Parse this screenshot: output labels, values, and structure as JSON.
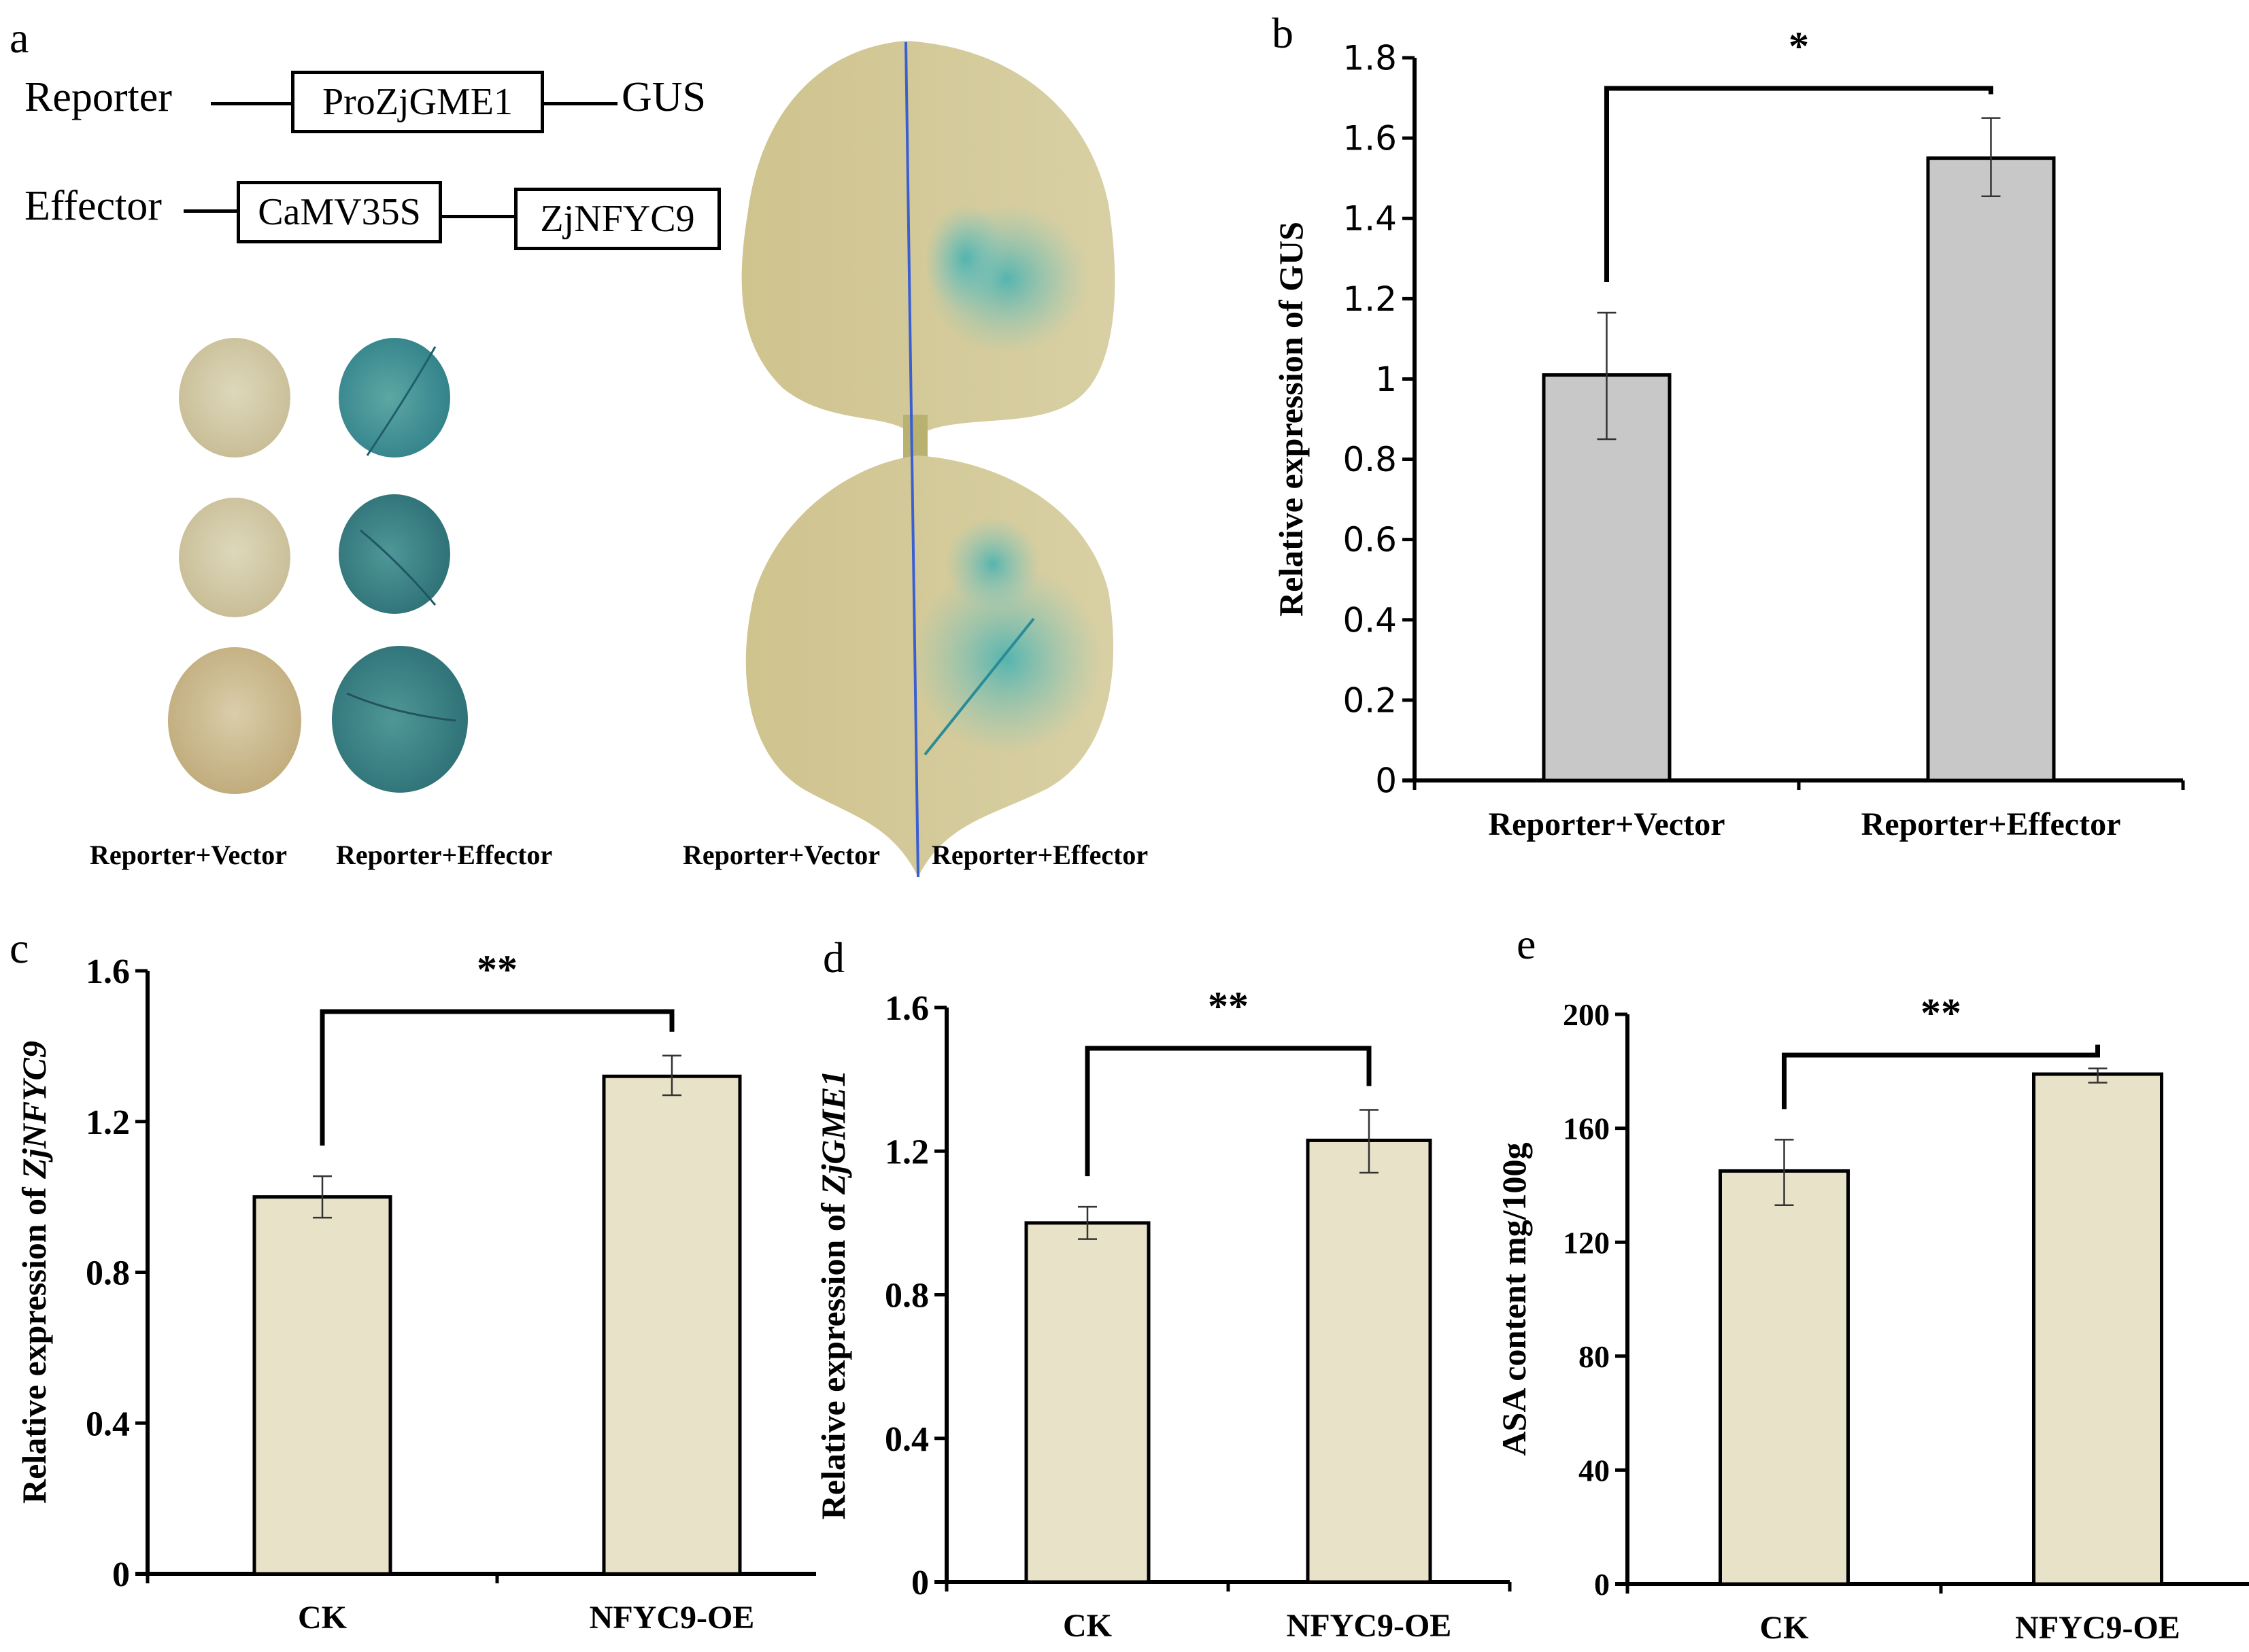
{
  "figure": {
    "panel_a": {
      "letter": "a",
      "reporter_label": "Reporter",
      "reporter_promoter": "ProZjGME1",
      "reporter_gene": "GUS",
      "effector_label": "Effector",
      "effector_promoter": "CaMV35S",
      "effector_gene": "ZjNFYC9",
      "disc_caption_left": "Reporter+Vector",
      "disc_caption_right": "Reporter+Effector",
      "leaf_caption_left": "Reporter+Vector",
      "leaf_caption_right": "Reporter+Effector",
      "colors": {
        "blue_stain": "#3a8f98",
        "unstained": "#d6cfa6",
        "divider": "#3b5fd0"
      }
    }
  },
  "chart_data": [
    {
      "panel": "b",
      "type": "bar",
      "title": "",
      "xlabel": "",
      "ylabel": "Relative expression of GUS",
      "ylabel_italic_part": "",
      "categories": [
        "Reporter+Vector",
        "Reporter+Effector"
      ],
      "values": [
        1.01,
        1.55
      ],
      "error_low": [
        0.85,
        1.455
      ],
      "error_high": [
        1.165,
        1.65
      ],
      "ylim": [
        0,
        1.8
      ],
      "yticks": [
        "0",
        "0.2",
        "0.4",
        "0.6",
        "0.8",
        "1",
        "1.2",
        "1.4",
        "1.6",
        "1.8"
      ],
      "significance": "*",
      "bar_color": "#c8c8c8",
      "tick_font": "sans",
      "grid": false
    },
    {
      "panel": "c",
      "type": "bar",
      "title": "",
      "xlabel": "",
      "ylabel": "Relative expression of ",
      "ylabel_italic_part": "ZjNFYC9",
      "categories": [
        "CK",
        "NFYC9-OE"
      ],
      "values": [
        1.0,
        1.32
      ],
      "error_low": [
        0.945,
        1.27
      ],
      "error_high": [
        1.055,
        1.375
      ],
      "ylim": [
        0,
        1.6
      ],
      "yticks": [
        "0",
        "0.4",
        "0.8",
        "1.2",
        "1.6"
      ],
      "significance": "**",
      "bar_color": "#e8e2c8",
      "tick_font": "serif",
      "grid": false
    },
    {
      "panel": "d",
      "type": "bar",
      "title": "",
      "xlabel": "",
      "ylabel": "Relative expression of ",
      "ylabel_italic_part": "ZjGME1",
      "categories": [
        "CK",
        "NFYC9-OE"
      ],
      "values": [
        1.0,
        1.23
      ],
      "error_low": [
        0.955,
        1.14
      ],
      "error_high": [
        1.045,
        1.315
      ],
      "ylim": [
        0,
        1.6
      ],
      "yticks": [
        "0",
        "0.4",
        "0.8",
        "1.2",
        "1.6"
      ],
      "significance": "**",
      "bar_color": "#e8e2c8",
      "tick_font": "serif",
      "grid": false
    },
    {
      "panel": "e",
      "type": "bar",
      "title": "",
      "xlabel": "",
      "ylabel": "ASA content mg/100g",
      "ylabel_italic_part": "",
      "categories": [
        "CK",
        "NFYC9-OE"
      ],
      "values": [
        145,
        179
      ],
      "error_low": [
        133,
        176
      ],
      "error_high": [
        156,
        181
      ],
      "ylim": [
        0,
        200
      ],
      "yticks": [
        "0",
        "40",
        "80",
        "120",
        "160",
        "200"
      ],
      "significance": "**",
      "bar_color": "#e8e2c8",
      "tick_font": "serif",
      "grid": false
    }
  ]
}
